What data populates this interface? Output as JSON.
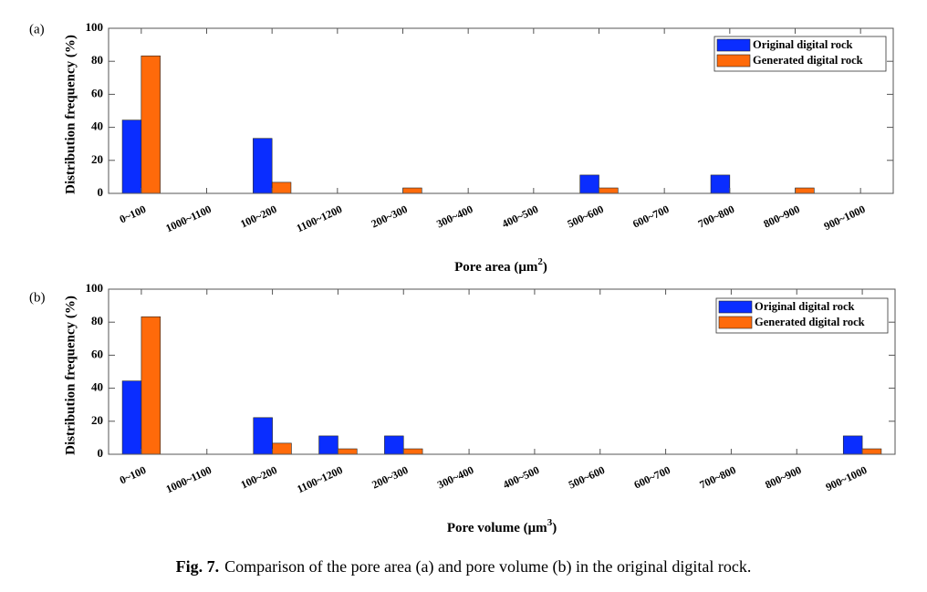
{
  "caption": {
    "label": "Fig. 7.",
    "text": "Comparison of the pore area (a) and pore volume (b) in the original digital rock."
  },
  "colors": {
    "original": "#0a2dff",
    "generated": "#ff6a0a"
  },
  "chart_data": [
    {
      "type": "bar",
      "panel_label": "(a)",
      "title": "",
      "xlabel": "Pore area (μm",
      "xlabel_sup": "2",
      "xlabel_suffix": ")",
      "ylabel": "Distribution frequency (%)",
      "ylim": [
        0,
        100
      ],
      "yticks": [
        0,
        20,
        40,
        60,
        80,
        100
      ],
      "grid": false,
      "legend_position": "top-right",
      "categories": [
        "0~100",
        "1000~1100",
        "100~200",
        "1100~1200",
        "200~300",
        "300~400",
        "400~500",
        "500~600",
        "600~700",
        "700~800",
        "800~900",
        "900~1000"
      ],
      "series": [
        {
          "name": "Original digital rock",
          "values": [
            44.4,
            0,
            33.3,
            0,
            0,
            0,
            0,
            11.1,
            0,
            11.1,
            0,
            0
          ]
        },
        {
          "name": "Generated digital rock",
          "values": [
            83.3,
            0,
            6.7,
            0,
            3.3,
            0,
            0,
            3.3,
            0,
            0,
            3.3,
            0
          ]
        }
      ]
    },
    {
      "type": "bar",
      "panel_label": "(b)",
      "title": "",
      "xlabel": "Pore volume (μm",
      "xlabel_sup": "3",
      "xlabel_suffix": ")",
      "ylabel": "Distribution frequency (%)",
      "ylim": [
        0,
        100
      ],
      "yticks": [
        0,
        20,
        40,
        60,
        80,
        100
      ],
      "grid": false,
      "legend_position": "top-right",
      "categories": [
        "0~100",
        "1000~1100",
        "100~200",
        "1100~1200",
        "200~300",
        "300~400",
        "400~500",
        "500~600",
        "600~700",
        "700~800",
        "800~900",
        "900~1000"
      ],
      "series": [
        {
          "name": "Original digital rock",
          "values": [
            44.4,
            0,
            22.2,
            11.1,
            11.1,
            0,
            0,
            0,
            0,
            0,
            0,
            11.1
          ]
        },
        {
          "name": "Generated digital rock",
          "values": [
            83.3,
            0,
            6.7,
            3.3,
            3.3,
            0,
            0,
            0,
            0,
            0,
            0,
            3.3
          ]
        }
      ]
    }
  ]
}
